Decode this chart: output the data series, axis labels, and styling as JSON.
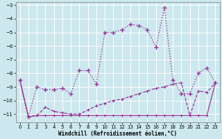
{
  "xlabel": "Windchill (Refroidissement éolien,°C)",
  "background_color": "#cce8ee",
  "grid_color": "#ffffff",
  "line_color": "#993399",
  "xlim": [
    -0.5,
    23.5
  ],
  "ylim": [
    -11.6,
    -2.8
  ],
  "yticks": [
    -11,
    -10,
    -9,
    -8,
    -7,
    -6,
    -5,
    -4,
    -3
  ],
  "xticks": [
    0,
    1,
    2,
    3,
    4,
    5,
    6,
    7,
    8,
    9,
    10,
    11,
    12,
    13,
    14,
    15,
    16,
    17,
    18,
    19,
    20,
    21,
    22,
    23
  ],
  "s1_x": [
    0,
    1,
    2,
    3,
    4,
    5,
    6,
    7,
    8,
    9,
    10,
    11,
    12,
    13,
    14,
    15,
    16,
    17,
    18,
    19,
    20,
    21,
    22,
    23
  ],
  "s1_y": [
    -8.5,
    -11.2,
    -11.1,
    -11.1,
    -11.1,
    -11.1,
    -11.1,
    -11.1,
    -11.1,
    -11.1,
    -11.1,
    -11.1,
    -11.1,
    -11.1,
    -11.1,
    -11.1,
    -11.1,
    -11.1,
    -11.1,
    -11.1,
    -11.1,
    -11.1,
    -11.1,
    -8.7
  ],
  "s2_x": [
    0,
    1,
    2,
    3,
    4,
    5,
    6,
    7,
    8,
    9,
    10,
    11,
    12,
    13,
    14,
    15,
    16,
    17,
    18,
    19,
    20,
    21,
    22,
    23
  ],
  "s2_y": [
    -8.5,
    -11.2,
    -11.1,
    -10.5,
    -10.8,
    -10.9,
    -11.0,
    -11.0,
    -10.7,
    -10.4,
    -10.2,
    -10.0,
    -9.9,
    -9.7,
    -9.5,
    -9.3,
    -9.1,
    -9.0,
    -8.8,
    -8.7,
    -11.1,
    -9.3,
    -9.4,
    -8.7
  ],
  "s3_x": [
    0,
    1,
    2,
    3,
    4,
    5,
    6,
    7,
    8,
    9,
    10,
    11,
    12,
    13,
    14,
    15,
    16,
    17,
    18,
    19,
    20,
    21,
    22,
    23
  ],
  "s3_y": [
    -8.5,
    -11.2,
    -9.0,
    -9.2,
    -9.2,
    -9.1,
    -9.5,
    -7.8,
    -7.8,
    -8.8,
    -5.0,
    -5.0,
    -4.8,
    -4.4,
    -4.5,
    -4.8,
    -6.1,
    -3.2,
    -8.5,
    -9.5,
    -9.5,
    -8.0,
    -7.6,
    -8.7
  ]
}
